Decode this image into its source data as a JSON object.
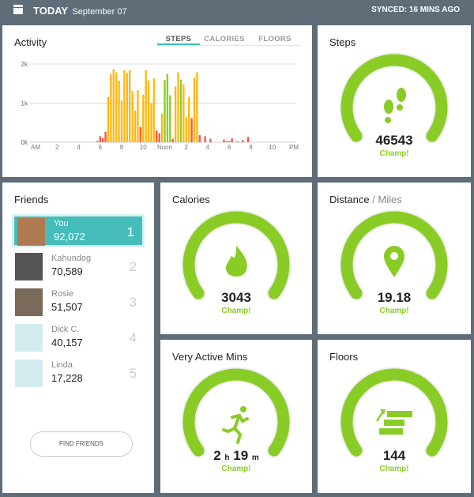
{
  "header": {
    "title": "TODAY",
    "date": "September 07",
    "synced": "SYNCED: 16 MINS AGO"
  },
  "activity": {
    "title": "Activity",
    "tabs": [
      "STEPS",
      "CALORIES",
      "FLOORS"
    ],
    "active_tab": "STEPS"
  },
  "chart_data": {
    "type": "bar",
    "title": "Activity",
    "ylabel": "Steps",
    "ylim": [
      0,
      2000
    ],
    "y_ticks": [
      "0k",
      "1k",
      "2k"
    ],
    "x_ticks": [
      "AM",
      "2",
      "4",
      "6",
      "8",
      "10",
      "Noon",
      "2",
      "4",
      "6",
      "8",
      "10",
      "PM"
    ],
    "xlim_hours": [
      0,
      24
    ],
    "colors": {
      "low": "#f15a3a",
      "mid": "#fbb917",
      "high": "#8ccf2a"
    },
    "bars": [
      [
        5.75,
        30,
        "low"
      ],
      [
        6,
        155,
        "low"
      ],
      [
        6.25,
        100,
        "low"
      ],
      [
        6.5,
        270,
        "low"
      ],
      [
        6.75,
        1155,
        "mid"
      ],
      [
        7,
        1745,
        "mid"
      ],
      [
        7.25,
        1865,
        "mid"
      ],
      [
        7.5,
        1790,
        "mid"
      ],
      [
        7.75,
        1575,
        "mid"
      ],
      [
        8,
        1070,
        "mid"
      ],
      [
        8.25,
        1845,
        "mid"
      ],
      [
        8.5,
        1770,
        "mid"
      ],
      [
        8.75,
        1845,
        "mid"
      ],
      [
        9,
        1310,
        "mid"
      ],
      [
        9.25,
        810,
        "mid"
      ],
      [
        9.5,
        1330,
        "mid"
      ],
      [
        9.75,
        390,
        "low"
      ],
      [
        10,
        1215,
        "mid"
      ],
      [
        10.25,
        1845,
        "mid"
      ],
      [
        10.5,
        1575,
        "mid"
      ],
      [
        10.75,
        1000,
        "mid"
      ],
      [
        11,
        1630,
        "mid"
      ],
      [
        11.25,
        300,
        "low"
      ],
      [
        11.5,
        230,
        "low"
      ],
      [
        11.75,
        730,
        "mid"
      ],
      [
        12,
        1590,
        "high"
      ],
      [
        12.25,
        1745,
        "high"
      ],
      [
        12.5,
        1200,
        "high"
      ],
      [
        12.75,
        90,
        "low"
      ],
      [
        13,
        1425,
        "mid"
      ],
      [
        13.25,
        1785,
        "mid"
      ],
      [
        13.5,
        1600,
        "high"
      ],
      [
        13.75,
        1480,
        "mid"
      ],
      [
        14,
        640,
        "mid"
      ],
      [
        14.25,
        1160,
        "mid"
      ],
      [
        14.5,
        615,
        "low"
      ],
      [
        14.75,
        1650,
        "mid"
      ],
      [
        15,
        1785,
        "mid"
      ],
      [
        15.25,
        180,
        "low"
      ],
      [
        15.75,
        155,
        "low"
      ],
      [
        16.25,
        90,
        "low"
      ],
      [
        17.5,
        70,
        "low"
      ],
      [
        17.75,
        30,
        "low"
      ],
      [
        18,
        30,
        "low"
      ],
      [
        18.25,
        100,
        "low"
      ],
      [
        18.75,
        20,
        "low"
      ],
      [
        19.25,
        50,
        "low"
      ],
      [
        19.75,
        140,
        "low"
      ]
    ]
  },
  "steps": {
    "title": "Steps",
    "value": "46543",
    "status": "Champ!"
  },
  "calories": {
    "title": "Calories",
    "value": "3043",
    "status": "Champ!"
  },
  "distance": {
    "title": "Distance",
    "unit": " / Miles",
    "value": "19.18",
    "status": "Champ!"
  },
  "active": {
    "title": "Very Active Mins",
    "hours": "2",
    "h": "h",
    "mins": "19",
    "m": "m",
    "status": "Champ!"
  },
  "floors": {
    "title": "Floors",
    "value": "144",
    "status": "Champ!"
  },
  "friends": {
    "title": "Friends",
    "find_button": "FIND FRIENDS",
    "list": [
      {
        "name": "You",
        "steps": "92,072",
        "rank": "1"
      },
      {
        "name": "Kahundog",
        "steps": "70,589",
        "rank": "2"
      },
      {
        "name": "Rosie",
        "steps": "51,507",
        "rank": "3"
      },
      {
        "name": "Dick C.",
        "steps": "40,157",
        "rank": "4"
      },
      {
        "name": "Linda",
        "steps": "17,228",
        "rank": "5"
      }
    ]
  },
  "colors": {
    "accent": "#8acc26",
    "teal": "#45bdba",
    "background": "#5e6d78"
  }
}
